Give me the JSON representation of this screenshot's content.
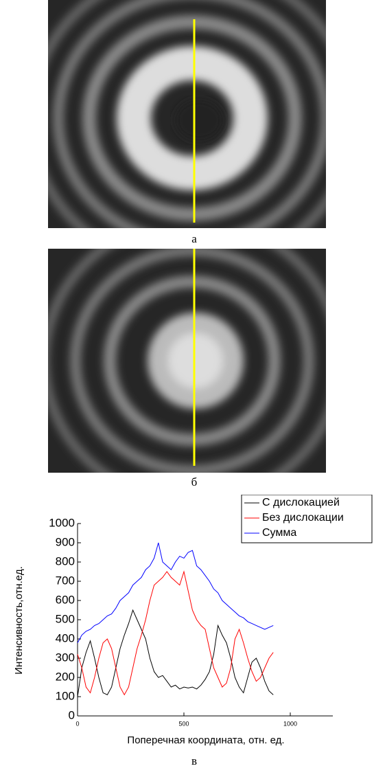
{
  "captions": [
    "а",
    "б",
    "в"
  ],
  "chart_data": {
    "type": "line",
    "x_label": "Поперечная координата, отн. ед.",
    "y_label": "Интенсивность,отн.ед.",
    "x": [
      0,
      20,
      40,
      60,
      80,
      100,
      120,
      140,
      160,
      180,
      200,
      220,
      240,
      260,
      280,
      300,
      320,
      340,
      360,
      380,
      400,
      420,
      440,
      460,
      480,
      500,
      520,
      540,
      560,
      580,
      600,
      620,
      640,
      660,
      680,
      700,
      720,
      740,
      760,
      780,
      800,
      820,
      840,
      860,
      880,
      900,
      920
    ],
    "series": [
      {
        "name": "С дислокацией",
        "color": "#000000",
        "values": [
          100,
          250,
          330,
          390,
          300,
          200,
          120,
          110,
          150,
          250,
          350,
          420,
          480,
          550,
          500,
          450,
          400,
          300,
          230,
          200,
          210,
          180,
          150,
          160,
          140,
          150,
          145,
          150,
          140,
          160,
          190,
          230,
          320,
          470,
          420,
          380,
          300,
          200,
          150,
          120,
          200,
          280,
          300,
          250,
          180,
          130,
          110
        ]
      },
      {
        "name": "Без дислокации",
        "color": "#ff0000",
        "values": [
          320,
          250,
          150,
          120,
          200,
          300,
          380,
          400,
          350,
          250,
          150,
          110,
          150,
          250,
          350,
          420,
          500,
          600,
          680,
          700,
          720,
          750,
          720,
          700,
          680,
          750,
          650,
          550,
          500,
          470,
          450,
          350,
          250,
          200,
          150,
          170,
          250,
          400,
          450,
          380,
          300,
          230,
          180,
          200,
          250,
          300,
          330
        ]
      },
      {
        "name": "Сумма",
        "color": "#0000ff",
        "values": [
          380,
          420,
          440,
          450,
          470,
          480,
          500,
          520,
          530,
          560,
          600,
          620,
          640,
          680,
          700,
          720,
          760,
          780,
          820,
          900,
          800,
          780,
          760,
          800,
          830,
          820,
          850,
          860,
          780,
          760,
          730,
          700,
          660,
          640,
          600,
          580,
          560,
          540,
          520,
          510,
          490,
          480,
          470,
          460,
          450,
          460,
          470
        ]
      }
    ],
    "xlim": [
      0,
      1200
    ],
    "ylim": [
      0,
      1000
    ],
    "xticks": [
      0,
      500,
      1000
    ],
    "yticks": [
      0,
      100,
      200,
      300,
      400,
      500,
      600,
      700,
      800,
      900,
      1000
    ],
    "legend": "top-right"
  }
}
